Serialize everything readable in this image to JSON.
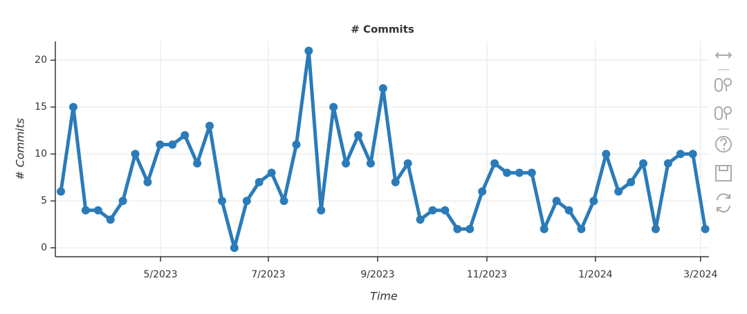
{
  "chart_data": {
    "type": "line",
    "title": "# Commits",
    "xlabel": "Time",
    "ylabel": "# Commits",
    "color": "#2b7bb9",
    "grid": true,
    "values": [
      6,
      15,
      4,
      4,
      3,
      5,
      10,
      7,
      11,
      11,
      12,
      9,
      13,
      5,
      0,
      5,
      7,
      8,
      5,
      11,
      21,
      4,
      15,
      9,
      12,
      9,
      17,
      7,
      9,
      3,
      4,
      4,
      2,
      2,
      6,
      9,
      8,
      8,
      8,
      2,
      5,
      4,
      2,
      5,
      10,
      6,
      7,
      9,
      2,
      9,
      10,
      10,
      2
    ],
    "xlim": [
      -0.45,
      52.3
    ],
    "xticks": [
      {
        "value": 8.04,
        "label": "5/2023"
      },
      {
        "value": 16.74,
        "label": "7/2023"
      },
      {
        "value": 25.56,
        "label": "9/2023"
      },
      {
        "value": 34.38,
        "label": "11/2023"
      },
      {
        "value": 43.14,
        "label": "1/2024"
      },
      {
        "value": 51.62,
        "label": "3/2024"
      }
    ],
    "ylim": [
      -0.95,
      22
    ],
    "yticks": [
      0,
      5,
      10,
      15,
      20
    ]
  }
}
